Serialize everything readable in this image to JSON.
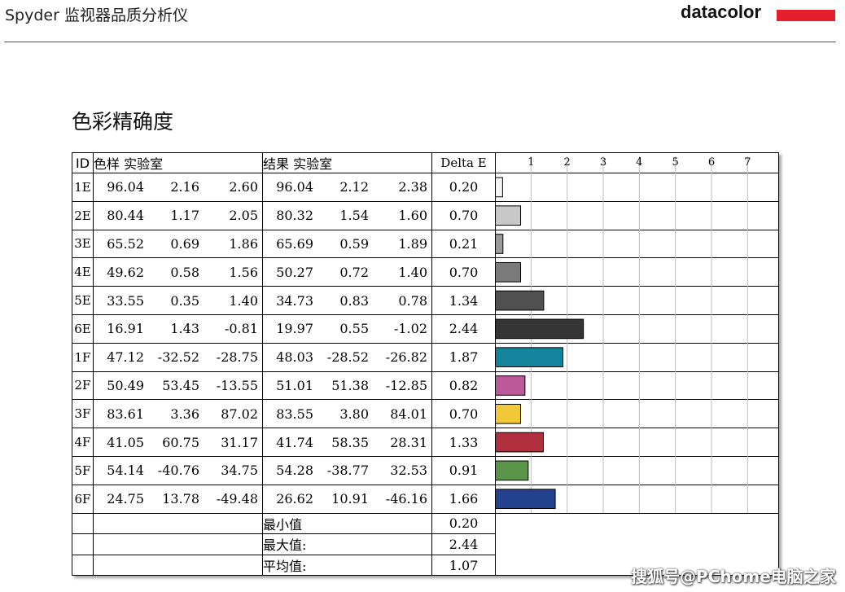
{
  "header": {
    "title": "Spyder 监视器品质分析仪",
    "logo_text": "datacolor"
  },
  "section_title": "色彩精确度",
  "table": {
    "col_id": "ID",
    "col_sample": "色样 实验室",
    "col_result": "结果 实验室",
    "col_delta": "Delta E",
    "rows": [
      {
        "id": "1E",
        "s": [
          "96.04",
          "2.16",
          "2.60"
        ],
        "r": [
          "96.04",
          "2.12",
          "2.38"
        ],
        "d": "0.20"
      },
      {
        "id": "2E",
        "s": [
          "80.44",
          "1.17",
          "2.05"
        ],
        "r": [
          "80.32",
          "1.54",
          "1.60"
        ],
        "d": "0.70"
      },
      {
        "id": "3E",
        "s": [
          "65.52",
          "0.69",
          "1.86"
        ],
        "r": [
          "65.69",
          "0.59",
          "1.89"
        ],
        "d": "0.21"
      },
      {
        "id": "4E",
        "s": [
          "49.62",
          "0.58",
          "1.56"
        ],
        "r": [
          "50.27",
          "0.72",
          "1.40"
        ],
        "d": "0.70"
      },
      {
        "id": "5E",
        "s": [
          "33.55",
          "0.35",
          "1.40"
        ],
        "r": [
          "34.73",
          "0.83",
          "0.78"
        ],
        "d": "1.34"
      },
      {
        "id": "6E",
        "s": [
          "16.91",
          "1.43",
          "-0.81"
        ],
        "r": [
          "19.97",
          "0.55",
          "-1.02"
        ],
        "d": "2.44"
      },
      {
        "id": "1F",
        "s": [
          "47.12",
          "-32.52",
          "-28.75"
        ],
        "r": [
          "48.03",
          "-28.52",
          "-26.82"
        ],
        "d": "1.87"
      },
      {
        "id": "2F",
        "s": [
          "50.49",
          "53.45",
          "-13.55"
        ],
        "r": [
          "51.01",
          "51.38",
          "-12.85"
        ],
        "d": "0.82"
      },
      {
        "id": "3F",
        "s": [
          "83.61",
          "3.36",
          "87.02"
        ],
        "r": [
          "83.55",
          "3.80",
          "84.01"
        ],
        "d": "0.70"
      },
      {
        "id": "4F",
        "s": [
          "41.05",
          "60.75",
          "31.17"
        ],
        "r": [
          "41.74",
          "58.35",
          "28.31"
        ],
        "d": "1.33"
      },
      {
        "id": "5F",
        "s": [
          "54.14",
          "-40.76",
          "34.75"
        ],
        "r": [
          "54.28",
          "-38.77",
          "32.53"
        ],
        "d": "0.91"
      },
      {
        "id": "6F",
        "s": [
          "24.75",
          "13.78",
          "-49.48"
        ],
        "r": [
          "26.62",
          "10.91",
          "-46.16"
        ],
        "d": "1.66"
      }
    ],
    "summary": [
      {
        "label": "最小值",
        "value": "0.20"
      },
      {
        "label": "最大值:",
        "value": "2.44"
      },
      {
        "label": "平均值:",
        "value": "1.07"
      }
    ]
  },
  "chart_data": {
    "type": "bar",
    "orientation": "horizontal",
    "categories": [
      "1E",
      "2E",
      "3E",
      "4E",
      "5E",
      "6E",
      "1F",
      "2F",
      "3F",
      "4F",
      "5F",
      "6F"
    ],
    "values": [
      0.2,
      0.7,
      0.21,
      0.7,
      1.34,
      2.44,
      1.87,
      0.82,
      0.7,
      1.33,
      0.91,
      1.66
    ],
    "colors": [
      "#f4f4f4",
      "#c8c8c8",
      "#9a9a9a",
      "#7a7a7a",
      "#505050",
      "#353535",
      "#13849c",
      "#bb5a98",
      "#f0c838",
      "#b0303e",
      "#5a9448",
      "#22428e"
    ],
    "xticks": [
      "1",
      "2",
      "3",
      "4",
      "5",
      "6",
      "7"
    ],
    "xlim": [
      0,
      7.85
    ],
    "grid": true
  },
  "watermark": "搜狐号@PChome电脑之家"
}
